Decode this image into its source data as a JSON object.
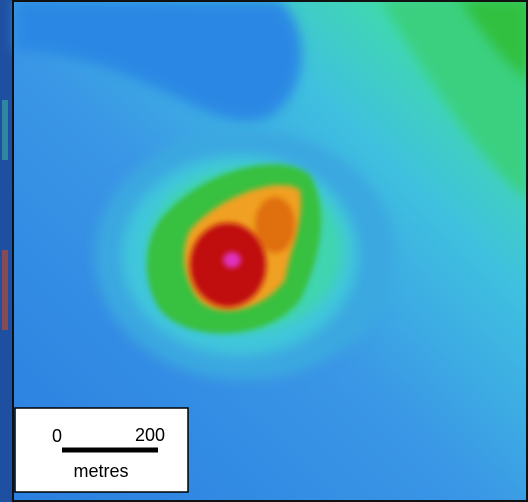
{
  "scale_bar": {
    "start_label": "0",
    "end_label": "200",
    "unit": "metres"
  }
}
